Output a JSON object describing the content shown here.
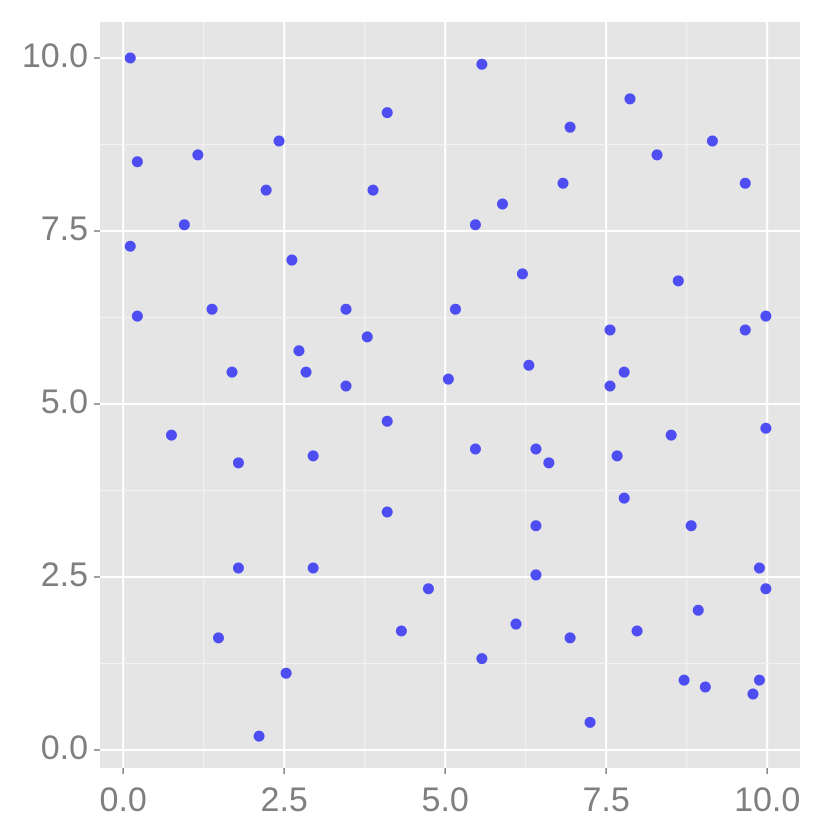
{
  "chart_data": {
    "type": "scatter",
    "series": [
      {
        "color": "#4d4df2",
        "x": [
          0.11,
          0.22,
          0.11,
          0.22,
          0.75,
          1.16,
          0.95,
          1.38,
          1.69,
          1.79,
          1.79,
          1.48,
          2.11,
          2.22,
          2.42,
          2.62,
          2.73,
          2.84,
          2.95,
          2.95,
          2.53,
          3.46,
          3.46,
          3.79,
          3.88,
          4.1,
          4.1,
          4.1,
          4.32,
          4.74,
          5.05,
          5.16,
          5.47,
          5.47,
          5.57,
          5.57,
          5.89,
          6.1,
          6.2,
          6.3,
          6.41,
          6.41,
          6.41,
          6.61,
          6.83,
          6.94,
          6.94,
          7.25,
          7.56,
          7.56,
          7.67,
          7.78,
          7.78,
          7.87,
          7.98,
          8.29,
          8.51,
          8.62,
          8.71,
          8.82,
          8.93,
          9.04,
          9.15,
          9.66,
          9.66,
          9.78,
          9.88,
          9.88,
          9.98,
          9.98,
          9.98
        ],
        "values": [
          10.0,
          8.5,
          7.28,
          6.27,
          4.55,
          8.6,
          7.59,
          6.37,
          5.46,
          4.15,
          2.63,
          1.62,
          0.2,
          8.09,
          8.8,
          7.08,
          5.77,
          5.46,
          4.25,
          2.63,
          1.11,
          6.37,
          5.26,
          5.97,
          8.09,
          9.21,
          4.75,
          3.44,
          1.72,
          2.33,
          5.36,
          6.37,
          7.59,
          4.35,
          9.91,
          1.32,
          7.89,
          1.82,
          6.88,
          5.56,
          4.35,
          3.24,
          2.53,
          4.15,
          8.19,
          9.0,
          1.62,
          0.4,
          6.07,
          5.26,
          4.25,
          5.46,
          3.64,
          9.41,
          1.72,
          8.6,
          4.55,
          6.78,
          1.01,
          3.24,
          2.02,
          0.91,
          8.8,
          8.19,
          6.07,
          0.81,
          2.63,
          1.01,
          6.27,
          4.65,
          2.33
        ]
      }
    ],
    "xlim": [
      -0.36,
      10.51
    ],
    "ylim": [
      -0.26,
      10.52
    ],
    "xticks": [
      {
        "value": 0,
        "label": "0.0"
      },
      2.5,
      {
        "value": 5,
        "label": "5.0"
      },
      7.5,
      {
        "value": 10,
        "label": "10.0"
      }
    ],
    "yticks": [
      {
        "value": 0,
        "label": "0.0"
      },
      2.5,
      {
        "value": 5,
        "label": "5.0"
      },
      7.5,
      {
        "value": 10,
        "label": "10.0"
      }
    ],
    "grid": true
  }
}
